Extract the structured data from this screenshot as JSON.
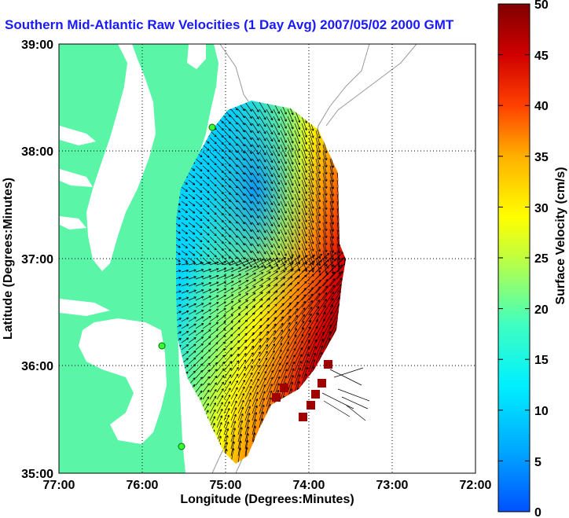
{
  "title": "Southern Mid-Atlantic Raw Velocities (1 Day Avg) 2007/05/02 2000 GMT",
  "x_axis": {
    "label": "Longitude (Degrees:Minutes)",
    "ticks": [
      "77:00",
      "76:00",
      "75:00",
      "74:00",
      "73:00",
      "72:00"
    ]
  },
  "y_axis": {
    "label": "Latitude (Degrees:Minutes)",
    "ticks": [
      "39:00",
      "38:00",
      "37:00",
      "36:00",
      "35:00"
    ]
  },
  "colorbar": {
    "label": "Surface Velocity (cm/s)",
    "ticks": [
      "50",
      "45",
      "40",
      "35",
      "30",
      "25",
      "20",
      "15",
      "10",
      "5",
      "0"
    ],
    "min": 0,
    "max": 50,
    "colormap": "jet"
  },
  "colors": {
    "land": "#5af5a7",
    "water": "#ffffff",
    "title": "#1a1aff",
    "station": "#33ff33"
  }
}
